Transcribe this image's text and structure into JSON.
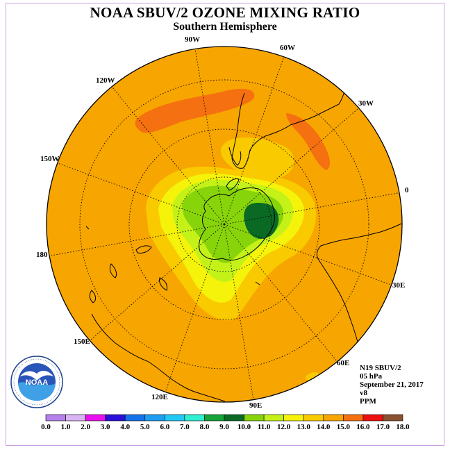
{
  "header": {
    "title": "NOAA SBUV/2 OZONE MIXING RATIO",
    "subtitle": "Southern Hemisphere"
  },
  "map": {
    "projection": "south polar stereographic",
    "ocean_color": "#f7a500",
    "longitude_labels": [
      "90W",
      "60W",
      "30W",
      "0",
      "30E",
      "60E",
      "90E",
      "120E",
      "150E",
      "180",
      "150W",
      "120W"
    ]
  },
  "info": {
    "instrument": "N19 SBUV/2",
    "level": "05 hPa",
    "date": "September 21, 2017",
    "version": "v8",
    "units": "PPM"
  },
  "legend": {
    "ticks": [
      "0.0",
      "1.0",
      "2.0",
      "3.0",
      "4.0",
      "5.0",
      "6.0",
      "7.0",
      "8.0",
      "9.0",
      "10.0",
      "11.0",
      "12.0",
      "13.0",
      "14.0",
      "15.0",
      "16.0",
      "17.0",
      "18.0"
    ],
    "colors": [
      "#b580ec",
      "#d9b3f2",
      "#ea10ee",
      "#2a10d8",
      "#1672e8",
      "#1d9ef0",
      "#22c8f4",
      "#2ef0d0",
      "#15a33a",
      "#0a6a24",
      "#88d40a",
      "#c4f218",
      "#f5f30a",
      "#f9ca00",
      "#f7a500",
      "#f57010",
      "#ee1010",
      "#8a5230"
    ]
  },
  "logo": {
    "text": "NOAA"
  }
}
